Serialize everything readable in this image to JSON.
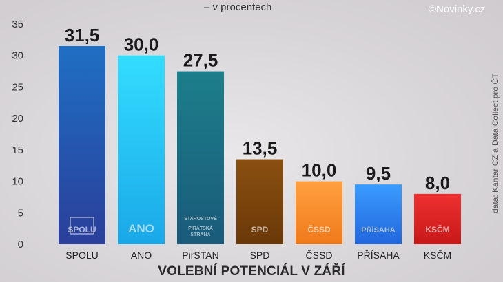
{
  "header": {
    "subtitle": "– v procentech",
    "copyright": "©Novinky.cz",
    "source": "data: Kantar CZ a Data Collect pro ČT"
  },
  "chart_data": {
    "type": "bar",
    "title": "VOLEBNÍ POTENCIÁL V ZÁŘÍ",
    "subtitle": "– v procentech",
    "xlabel": "",
    "ylabel": "",
    "ylim": [
      0,
      35
    ],
    "yticks": [
      0,
      5,
      10,
      15,
      20,
      25,
      30,
      35
    ],
    "grid": false,
    "categories": [
      "SPOLU",
      "ANO",
      "PirSTAN",
      "SPD",
      "ČSSD",
      "PŘÍSAHA",
      "KSČM"
    ],
    "values": [
      31.5,
      30.0,
      27.5,
      13.5,
      10.0,
      9.5,
      8.0
    ],
    "value_labels": [
      "31,5",
      "30,0",
      "27,5",
      "13,5",
      "10,0",
      "9,5",
      "8,0"
    ],
    "logo_texts": [
      [
        "SPOLU"
      ],
      [
        "ANO"
      ],
      [
        "STAROSTOVÉ",
        "PIRÁTSKÁ",
        "STRANA"
      ],
      [
        "SPD"
      ],
      [
        "ČSSD"
      ],
      [
        "PŘÍSAHA"
      ],
      [
        "KSČM"
      ]
    ],
    "colors": [
      [
        "#1f6fc4",
        "#2a3f9a"
      ],
      [
        "#33ddff",
        "#1aa8e8"
      ],
      [
        "#1c7f8a",
        "#1a5a7a"
      ],
      [
        "#8a5010",
        "#6a3808"
      ],
      [
        "#ffa040",
        "#f07a1a"
      ],
      [
        "#3a9cff",
        "#2266dd"
      ],
      [
        "#ee3030",
        "#c81818"
      ]
    ]
  }
}
